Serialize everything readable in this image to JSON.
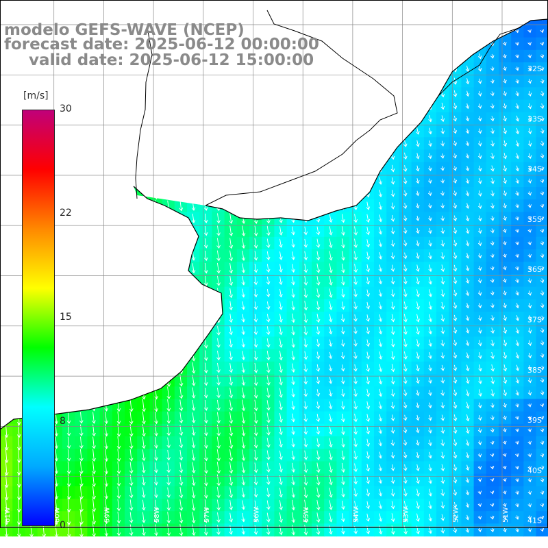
{
  "title": {
    "line1": "modelo GEFS-WAVE (NCEP)",
    "line2": "forecast date: 2025-06-12 00:00:00",
    "line3": "valid date: 2025-06-12 15:00:00"
  },
  "colorbar": {
    "unit": "[m/s]",
    "ticks": [
      "30",
      "22",
      "15",
      "8",
      "0"
    ],
    "stops": [
      "#0000ff",
      "#00aaff",
      "#00ffff",
      "#00ff00",
      "#ffff00",
      "#ff8800",
      "#ff0000",
      "#c0007a"
    ]
  },
  "axes": {
    "lat_labels": [
      "32S",
      "33S",
      "34S",
      "35S",
      "36S",
      "37S",
      "38S",
      "39S",
      "40S",
      "41S"
    ],
    "lon_labels": [
      "61W",
      "60W",
      "59W",
      "58W",
      "57W",
      "56W",
      "55W",
      "54W",
      "53W",
      "52W",
      "51W"
    ]
  },
  "colors": {
    "land": "#ffffff",
    "coast": "#000000",
    "grid": "#888888",
    "arrow": "#ffffff"
  }
}
